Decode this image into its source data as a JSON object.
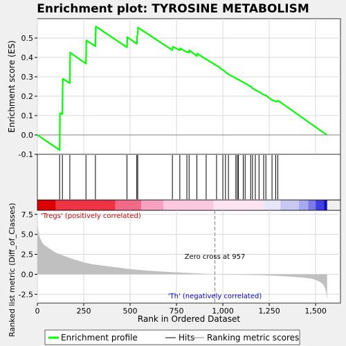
{
  "chart_data": [
    {
      "type": "line",
      "title": "Enrichment plot: TYROSINE METABOLISM",
      "ylabel": "Enrichment score (ES)",
      "xlim": [
        0,
        1634
      ],
      "ylim": [
        -0.1,
        0.6
      ],
      "yticks": [
        -0.1,
        0.0,
        0.1,
        0.2,
        0.3,
        0.4,
        0.5
      ],
      "ytick_labels": [
        "-0.1",
        "0.0",
        "0.1",
        "0.2",
        "0.3",
        "0.4",
        "0.5"
      ],
      "grid": true,
      "series": [
        {
          "name": "Enrichment profile",
          "color": "#00ff00",
          "x": [
            0,
            120,
            122,
            135,
            137,
            175,
            177,
            262,
            264,
            313,
            315,
            483,
            485,
            536,
            538,
            541,
            543,
            728,
            730,
            768,
            770,
            806,
            808,
            818,
            820,
            860,
            862,
            910,
            912,
            966,
            968,
            1000,
            1002,
            1014,
            1016,
            1030,
            1032,
            1070,
            1072,
            1078,
            1080,
            1084,
            1086,
            1110,
            1112,
            1120,
            1122,
            1150,
            1152,
            1160,
            1162,
            1175,
            1177,
            1195,
            1197,
            1220,
            1222,
            1232,
            1234,
            1265,
            1267,
            1285,
            1287,
            1296,
            1298,
            1560
          ],
          "y": [
            0.0,
            -0.078,
            0.112,
            0.108,
            0.29,
            0.267,
            0.425,
            0.368,
            0.488,
            0.458,
            0.56,
            0.452,
            0.505,
            0.47,
            0.51,
            0.52,
            0.554,
            0.438,
            0.455,
            0.437,
            0.447,
            0.427,
            0.43,
            0.425,
            0.437,
            0.407,
            0.42,
            0.39,
            0.39,
            0.358,
            0.358,
            0.335,
            0.335,
            0.324,
            0.324,
            0.313,
            0.313,
            0.292,
            0.292,
            0.287,
            0.287,
            0.285,
            0.285,
            0.271,
            0.271,
            0.265,
            0.265,
            0.25,
            0.25,
            0.24,
            0.24,
            0.232,
            0.232,
            0.222,
            0.222,
            0.207,
            0.207,
            0.203,
            0.203,
            0.18,
            0.18,
            0.172,
            0.172,
            0.177,
            0.177,
            0.0
          ]
        }
      ]
    },
    {
      "type": "scatter",
      "name": "hits",
      "x": [
        120,
        135,
        175,
        262,
        313,
        483,
        536,
        541,
        728,
        768,
        806,
        818,
        860,
        910,
        966,
        1000,
        1014,
        1030,
        1070,
        1078,
        1084,
        1110,
        1120,
        1150,
        1160,
        1175,
        1195,
        1220,
        1232,
        1265,
        1285,
        1296
      ]
    },
    {
      "type": "area",
      "xlabel": "Rank in Ordered Dataset",
      "ylabel": "Ranked list metric (Diff_of_Classes)",
      "xlim": [
        0,
        1634
      ],
      "ylim": [
        -3.6,
        8.0
      ],
      "xticks": [
        0,
        250,
        500,
        750,
        1000,
        1250,
        1500
      ],
      "xtick_labels": [
        "0",
        "250",
        "500",
        "750",
        "1,000",
        "1,250",
        "1,500"
      ],
      "yticks": [
        -2.5,
        0.0,
        2.5,
        5.0,
        7.5
      ],
      "ytick_labels": [
        "-2.5",
        "0.0",
        "2.5",
        "5.0",
        "7.5"
      ],
      "grid": true,
      "profile": {
        "x": [
          0,
          3,
          8,
          15,
          25,
          40,
          60,
          80,
          100,
          150,
          200,
          250,
          300,
          400,
          500,
          600,
          700,
          800,
          900,
          957,
          1000,
          1100,
          1200,
          1250,
          1300,
          1350,
          1400,
          1450,
          1480,
          1500,
          1520,
          1535,
          1545,
          1552,
          1558,
          1562
        ],
        "y": [
          7.0,
          5.8,
          5.0,
          4.5,
          4.0,
          3.6,
          3.3,
          3.0,
          2.7,
          2.25,
          1.85,
          1.5,
          1.25,
          0.95,
          0.65,
          0.45,
          0.3,
          0.18,
          0.07,
          0.0,
          -0.03,
          -0.06,
          -0.1,
          -0.14,
          -0.2,
          -0.27,
          -0.35,
          -0.45,
          -0.55,
          -0.7,
          -0.9,
          -1.15,
          -1.4,
          -1.8,
          -2.4,
          -3.2
        ]
      },
      "zero_cross": 957,
      "annotations": [
        "Zero cross at 957",
        "'Tregs' (positively correlated)",
        "'Th' (negatively correlated)"
      ]
    }
  ],
  "legend": {
    "entries": [
      {
        "label": "Enrichment profile",
        "color": "#00ff00"
      },
      {
        "label": "Hits",
        "color": "#000000"
      },
      {
        "label": "Ranking metric scores",
        "color": "#c0c0c0"
      }
    ]
  },
  "colors": {
    "profile": "#00ff00",
    "hits": "#000000",
    "metric_fill": "#c0c0c0",
    "zero_line": "#808080",
    "pos_label": "#cc0000",
    "neg_label": "#0000cc",
    "grid": "#d8d8d8"
  }
}
